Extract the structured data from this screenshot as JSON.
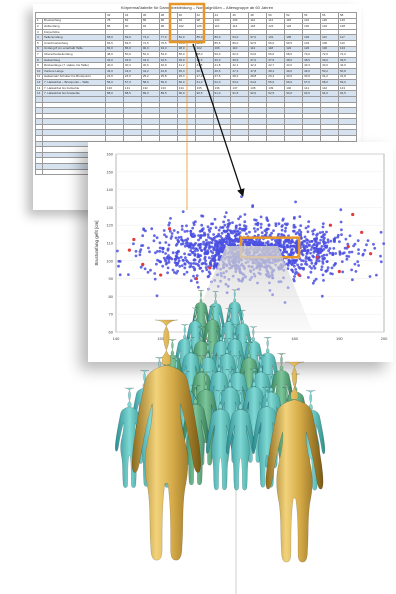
{
  "sheet": {
    "title_a": "Körpermaßtabelle für Damenbekleidung",
    "title_b": "Normalgrößen – Altersgruppe ab 60 Jahren",
    "size_header": [
      "32",
      "34",
      "36",
      "38",
      "40",
      "42",
      "44",
      "46",
      "48",
      "50",
      "52",
      "54",
      "56",
      "58"
    ],
    "rows": [
      {
        "n": "1",
        "label": "Brustumfang",
        "v": [
          "78",
          "82",
          "86",
          "90",
          "94",
          "98",
          "102",
          "106",
          "110",
          "114",
          "118",
          "122",
          "126",
          "130"
        ]
      },
      {
        "n": "2",
        "label": "Hüftumfang",
        "v": [
          "86",
          "90",
          "94",
          "98",
          "102",
          "106",
          "110",
          "114",
          "118",
          "122",
          "126",
          "130",
          "134",
          "138"
        ]
      },
      {
        "n": "3",
        "label": "Körperhöhe",
        "v": [
          "",
          "",
          "",
          "",
          "",
          "",
          "",
          "",
          "",
          "",
          "",
          "",
          "",
          ""
        ]
      },
      {
        "n": "4",
        "label": "Taillenumfang",
        "v": [
          "65,0",
          "69,0",
          "73,0",
          "77,0",
          "81,0",
          "85,0",
          "89,0",
          "93,0",
          "97,0",
          "101",
          "105",
          "109",
          "113",
          "117"
        ]
      },
      {
        "n": "5",
        "label": "Unterbrustumfang",
        "v": [
          "66,5",
          "69,5",
          "72,5",
          "75,5",
          "78,5",
          "82,0",
          "85,5",
          "89,0",
          "92,5",
          "96,0",
          "99,5",
          "103",
          "106",
          "110"
        ]
      },
      {
        "n": "6",
        "label": "Umfang 8 cm unterhalb Taille",
        "v": [
          "82,0",
          "86,0",
          "90,0",
          "94,0",
          "98,0",
          "102",
          "106",
          "110",
          "114",
          "118",
          "122",
          "126",
          "130",
          "134"
        ]
      },
      {
        "n": "7",
        "label": "Oberschenkelumfang",
        "v": [
          "48,0",
          "50,0",
          "52,0",
          "54,0",
          "56,0",
          "58,0",
          "60,0",
          "62,0",
          "64,0",
          "66,0",
          "68,0",
          "70,0",
          "72,0",
          "74,0"
        ]
      },
      {
        "n": "8",
        "label": "Halsumfang",
        "v": [
          "33,0",
          "33,5",
          "34,0",
          "34,5",
          "35,0",
          "35,5",
          "36,0",
          "36,5",
          "37,0",
          "37,5",
          "38,0",
          "38,5",
          "39,0",
          "39,5"
        ]
      },
      {
        "n": "9",
        "label": "Rückenlänge (7. Halsw. bis Taille)",
        "v": [
          "40,0",
          "40,3",
          "40,6",
          "40,9",
          "41,2",
          "41,5",
          "41,8",
          "42,1",
          "42,4",
          "42,7",
          "43,0",
          "43,3",
          "43,6",
          "43,9"
        ]
      },
      {
        "n": "10",
        "label": "Vordere Länge",
        "v": [
          "43,0",
          "43,6",
          "44,2",
          "44,8",
          "45,4",
          "46,0",
          "46,6",
          "47,2",
          "47,8",
          "48,4",
          "49,0",
          "49,6",
          "50,2",
          "50,8"
        ]
      },
      {
        "n": "11",
        "label": "Halsansatz Schulter bis Brustpunkt",
        "v": [
          "24,0",
          "24,6",
          "25,2",
          "25,8",
          "26,4",
          "27,0",
          "27,6",
          "28,2",
          "28,8",
          "29,4",
          "30,0",
          "30,6",
          "31,2",
          "31,8"
        ]
      },
      {
        "n": "12",
        "label": "7. Halswirbel – Brustpunkt – Taille",
        "v": [
          "56,0",
          "57,0",
          "58,0",
          "59,0",
          "60,0",
          "61,0",
          "62,0",
          "63,0",
          "64,0",
          "65,0",
          "66,0",
          "67,0",
          "68,0",
          "69,0"
        ]
      },
      {
        "n": "13",
        "label": "7. Halswirbel bis Fußsohle",
        "v": [
          "130",
          "131",
          "132",
          "133",
          "134",
          "135",
          "136",
          "137",
          "138",
          "139",
          "140",
          "141",
          "142",
          "143"
        ]
      },
      {
        "n": "14",
        "label": "7. Halswirbel bis Kniekehle",
        "v": [
          "88,0",
          "88,5",
          "89,0",
          "89,5",
          "90,0",
          "90,5",
          "91,0",
          "91,5",
          "92,0",
          "92,5",
          "93,0",
          "93,5",
          "94,0",
          "94,5"
        ]
      }
    ]
  },
  "chart_data": {
    "type": "scatter",
    "ylabel": "Brustumfang gefit [cm]",
    "xlim": [
      140,
      200
    ],
    "ylim": [
      60,
      160
    ],
    "xticks": [
      "140",
      "150",
      "160",
      "170",
      "180",
      "190",
      "200"
    ],
    "yticks": [
      "60",
      "70",
      "80",
      "90",
      "100",
      "110",
      "120",
      "130",
      "140",
      "150",
      "160"
    ],
    "series": [
      {
        "color": "#4a4fe0",
        "cloud": {
          "cx": [
            165,
            178
          ],
          "cy": [
            100,
            112
          ],
          "sx": 11,
          "sy": 9,
          "n": 1500
        },
        "description_only": false
      },
      {
        "color": "#e23a3a",
        "points": [
          [
            144,
            112
          ],
          [
            146,
            98
          ],
          [
            150,
            92
          ],
          [
            152,
            118
          ],
          [
            158,
            90
          ],
          [
            161,
            96
          ],
          [
            188,
            120
          ],
          [
            192,
            108
          ],
          [
            195,
            116
          ],
          [
            193,
            126
          ],
          [
            190,
            94
          ],
          [
            185,
            102
          ],
          [
            197,
            104
          ],
          [
            143,
            106
          ],
          [
            181,
            92
          ]
        ]
      }
    ],
    "highlight": {
      "x": [
        168,
        181
      ],
      "y": [
        102,
        113
      ]
    },
    "bg_points": {
      "color": "#4a4fe0"
    }
  },
  "colors": {
    "scatter_blue": "#4a4fe0",
    "scatter_red": "#e23a3a",
    "highlight_orange": "#e8962a",
    "avatar_gold": "#d2a846",
    "avatar_teal": "#4fb7b3"
  }
}
